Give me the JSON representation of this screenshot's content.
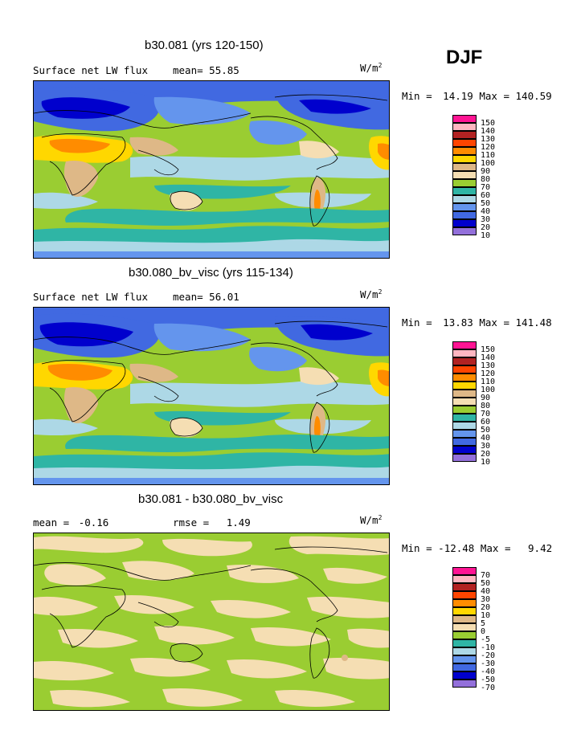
{
  "season": "DJF",
  "units_label": "W/m",
  "units_sup": "2",
  "colors": {
    "abs": [
      "#ff1493",
      "#ffb6c1",
      "#b22222",
      "#ff4500",
      "#ff8c00",
      "#ffd700",
      "#deb887",
      "#f5deb3",
      "#9acd32",
      "#2fb5a5",
      "#add8e6",
      "#6495ed",
      "#4169e1",
      "#0000cd",
      "#9370db"
    ],
    "diff": [
      "#ff1493",
      "#ffb6c1",
      "#b22222",
      "#ff4500",
      "#ff8c00",
      "#ffd700",
      "#deb887",
      "#f5deb3",
      "#9acd32",
      "#2fb5a5",
      "#add8e6",
      "#6495ed",
      "#4169e1",
      "#0000cd",
      "#9370db"
    ]
  },
  "panels": [
    {
      "title": "b30.081 (yrs 120-150)",
      "subtitle_left": "Surface net LW flux",
      "mean_label": "mean=",
      "mean_value": "55.85",
      "min_label": "Min =",
      "min_value": "14.19",
      "max_label": "Max =",
      "max_value": "140.59",
      "legend_labels": [
        "150",
        "140",
        "130",
        "120",
        "110",
        "100",
        "90",
        "80",
        "70",
        "60",
        "50",
        "40",
        "30",
        "20",
        "10"
      ]
    },
    {
      "title": "b30.080_bv_visc (yrs 115-134)",
      "subtitle_left": "Surface net LW flux",
      "mean_label": "mean=",
      "mean_value": "56.01",
      "min_label": "Min =",
      "min_value": "13.83",
      "max_label": "Max =",
      "max_value": "141.48",
      "legend_labels": [
        "150",
        "140",
        "130",
        "120",
        "110",
        "100",
        "90",
        "80",
        "70",
        "60",
        "50",
        "40",
        "30",
        "20",
        "10"
      ]
    },
    {
      "title": "b30.081 - b30.080_bv_visc",
      "mean_label": "mean =",
      "mean_value": "-0.16",
      "rmse_label": "rmse =",
      "rmse_value": "1.49",
      "min_label": "Min =",
      "min_value": "-12.48",
      "max_label": "Max =",
      "max_value": "9.42",
      "legend_labels": [
        "70",
        "50",
        "40",
        "30",
        "20",
        "10",
        "5",
        "0",
        "-5",
        "-10",
        "-20",
        "-30",
        "-40",
        "-50",
        "-70"
      ]
    }
  ]
}
